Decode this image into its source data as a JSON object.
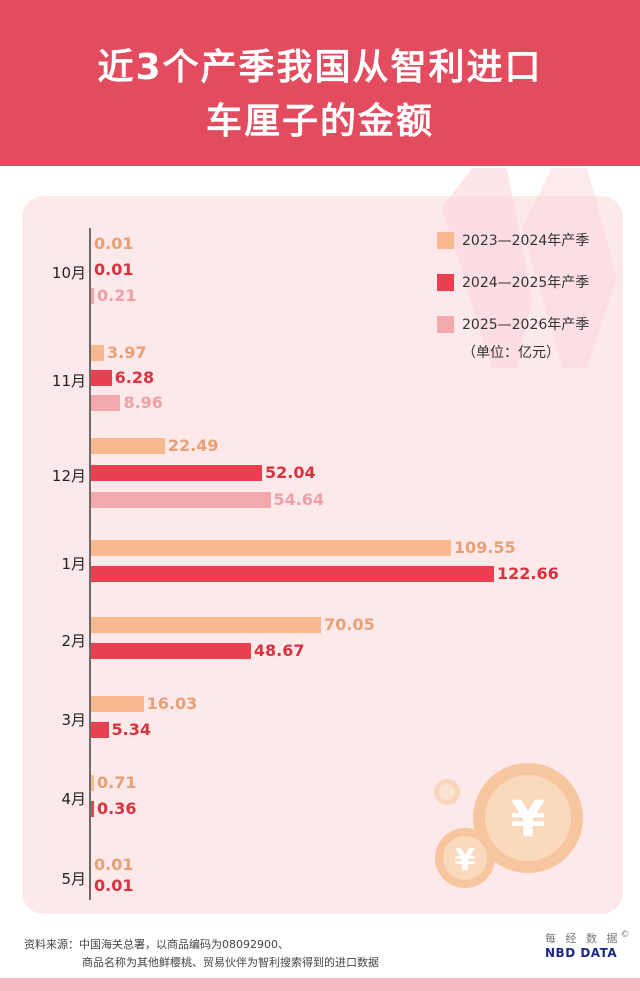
{
  "title_line1": "近3个产季我国从智利进口",
  "title_line2": "车厘子的金额",
  "legend": [
    {
      "label": "2023—2024年产季",
      "color": "#f9b98f"
    },
    {
      "label": "2024—2025年产季",
      "color": "#e8404e"
    },
    {
      "label": "2025—2026年产季",
      "color": "#f2a9ae"
    }
  ],
  "unit_label": "（单位：亿元）",
  "value_colors": [
    "#e8a077",
    "#d8333f",
    "#efa0a6"
  ],
  "chart_data": {
    "type": "bar",
    "orientation": "horizontal",
    "title": "近3个产季我国从智利进口车厘子的金额",
    "unit": "亿元",
    "categories": [
      "10月",
      "11月",
      "12月",
      "1月",
      "2月",
      "3月",
      "4月",
      "5月"
    ],
    "series": [
      {
        "name": "2023—2024年产季",
        "values": [
          0.01,
          3.97,
          22.49,
          109.55,
          70.05,
          16.03,
          0.71,
          0.01
        ]
      },
      {
        "name": "2024—2025年产季",
        "values": [
          0.01,
          6.28,
          52.04,
          122.66,
          48.67,
          5.34,
          0.36,
          0.01
        ]
      },
      {
        "name": "2025—2026年产季",
        "values": [
          0.21,
          8.96,
          54.64,
          null,
          null,
          null,
          null,
          null
        ]
      }
    ],
    "labels": [
      [
        "0.01",
        "0.01",
        "0.21"
      ],
      [
        "3.97",
        "6.28",
        "8.96"
      ],
      [
        "22.49",
        "52.04",
        "54.64"
      ],
      [
        "109.55",
        "122.66"
      ],
      [
        "70.05",
        "48.67"
      ],
      [
        "16.03",
        "5.34"
      ],
      [
        "0.71",
        "0.36"
      ],
      [
        "0.01",
        "0.01"
      ]
    ],
    "xlim": [
      0,
      122.66
    ],
    "legend_position": "top-right"
  },
  "source_line1": "资料来源：中国海关总署，以商品编码为08092900、",
  "source_line2": "商品名称为其他鲜樱桃、贸易伙伴为智利搜索得到的进口数据",
  "logo": {
    "cn": "每 经 数 据",
    "en": "NBD DATA",
    "mark": "©"
  },
  "coin_symbol": "¥"
}
